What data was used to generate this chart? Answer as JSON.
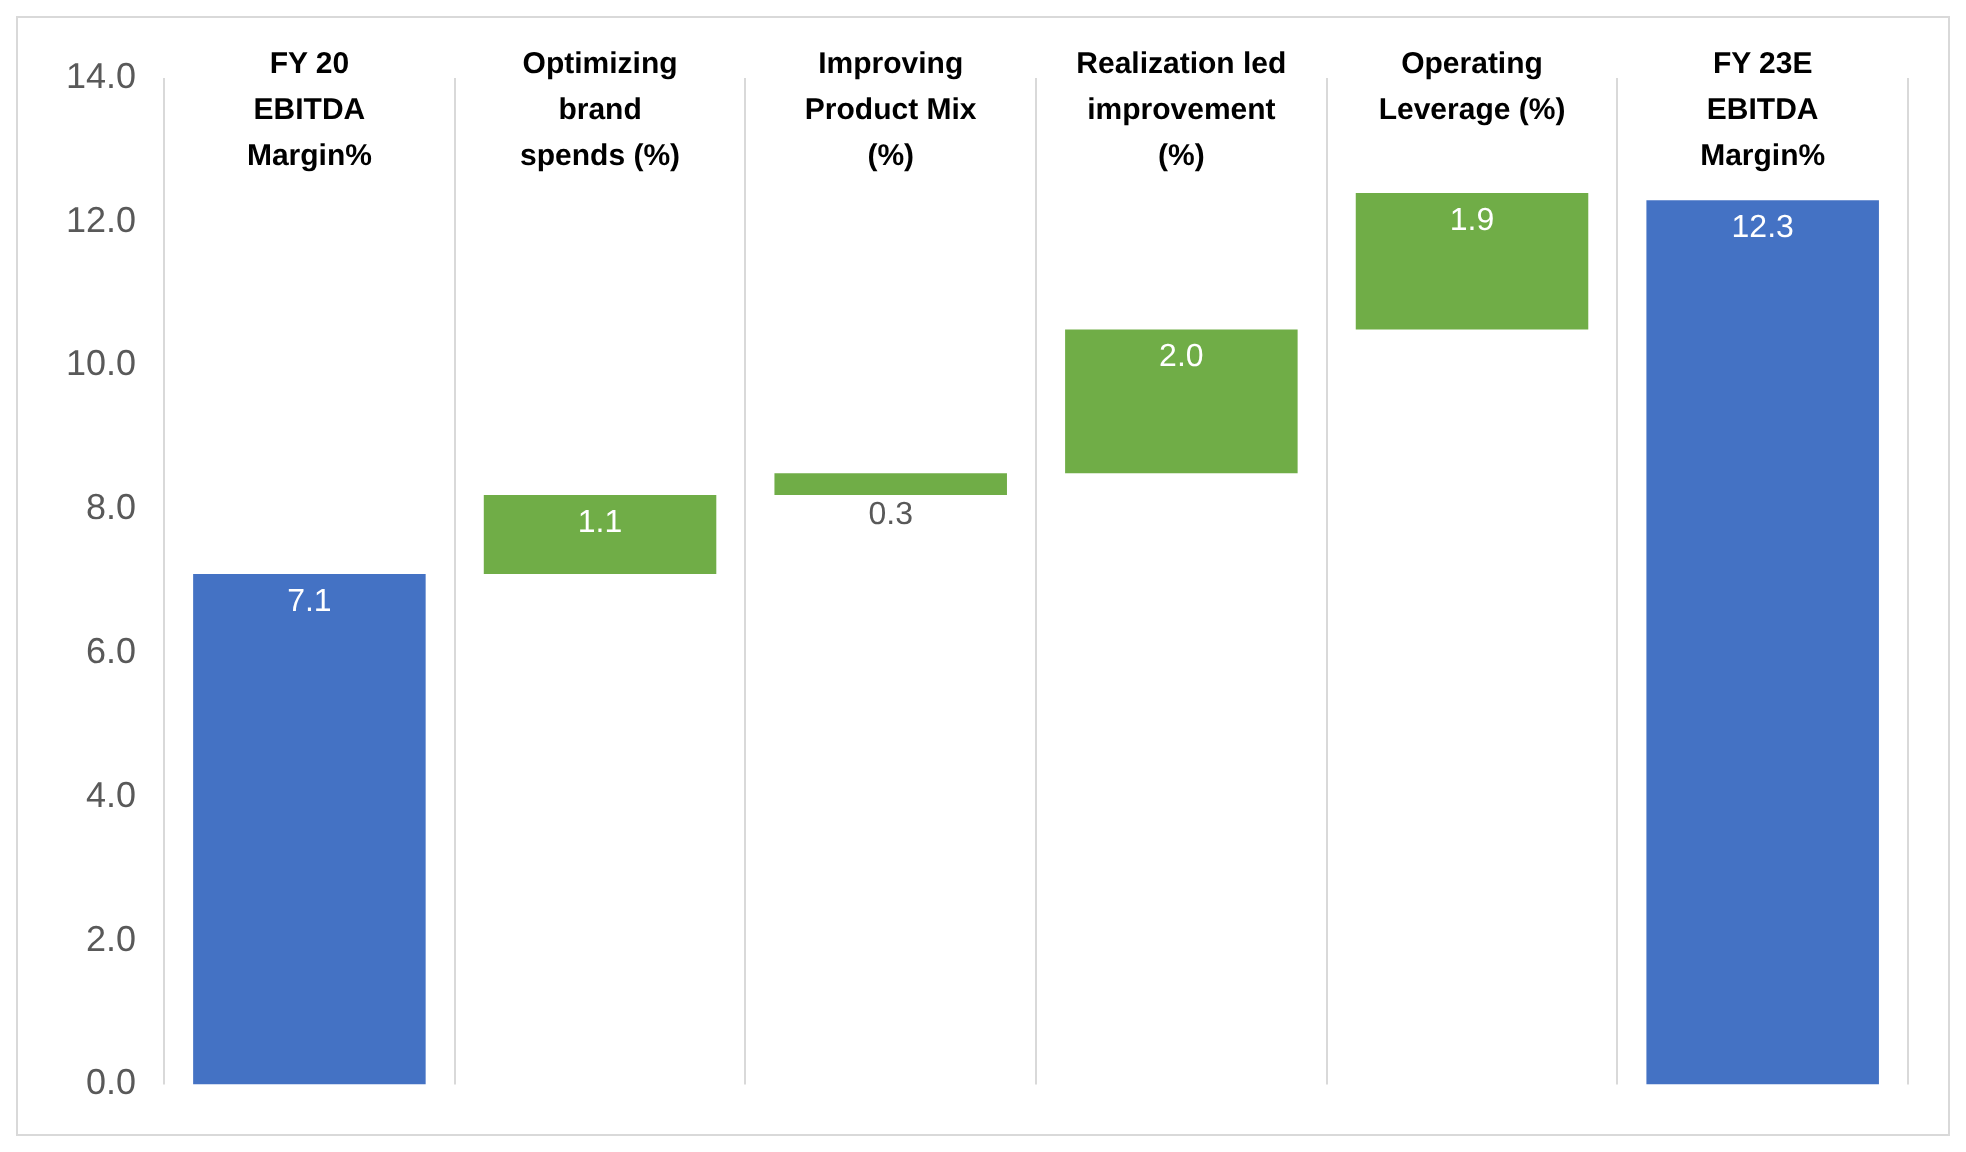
{
  "chart_data": {
    "type": "bar",
    "categories": [
      "FY 20\nEBITDA\nMargin%",
      "Optimizing\nbrand\nspends (%)",
      "Improving\nProduct Mix\n(%)",
      "Realization led\nimprovement\n(%)",
      "Operating\nLeverage (%)",
      "FY 23E\nEBITDA\nMargin%"
    ],
    "values": [
      7.1,
      1.1,
      0.3,
      2.0,
      1.9,
      12.3
    ],
    "base": [
      0,
      7.1,
      8.2,
      8.5,
      10.5,
      0
    ],
    "colors": [
      "#4472c4",
      "#70ad47",
      "#70ad47",
      "#70ad47",
      "#70ad47",
      "#4472c4"
    ],
    "value_labels": [
      "7.1",
      "1.1",
      "0.3",
      "2.0",
      "1.9",
      "12.3"
    ],
    "ylim": [
      0,
      14
    ],
    "yticks": [
      {
        "value": 0,
        "label": "0.0"
      },
      {
        "value": 2,
        "label": "2.0"
      },
      {
        "value": 4,
        "label": "4.0"
      },
      {
        "value": 6,
        "label": "6.0"
      },
      {
        "value": 8,
        "label": "8.0"
      },
      {
        "value": 10,
        "label": "10.0"
      },
      {
        "value": 12,
        "label": "12.0"
      },
      {
        "value": 14,
        "label": "14.0"
      }
    ],
    "grid": "x",
    "legend": false
  }
}
